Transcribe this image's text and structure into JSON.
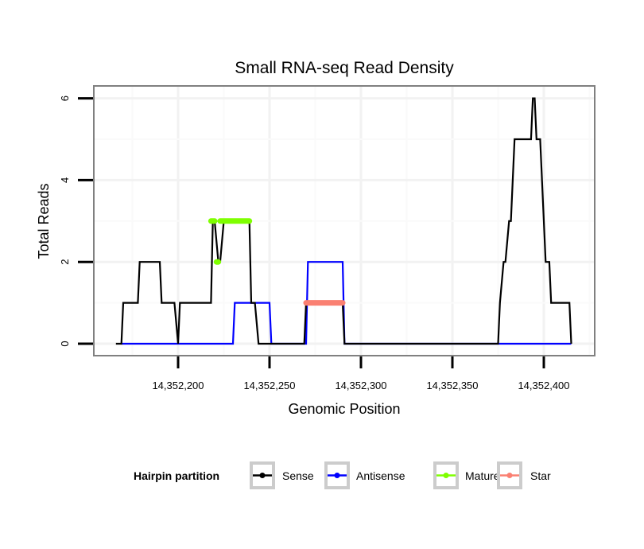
{
  "chart_data": {
    "type": "line",
    "title": "Small RNA-seq Read Density",
    "xlabel": "Genomic Position",
    "ylabel": "Total Reads",
    "xlim": [
      14352160,
      14352418
    ],
    "ylim": [
      -0.25,
      6.2
    ],
    "grid": true,
    "x_ticks": [
      {
        "value": 14352200,
        "label": "14,352,200"
      },
      {
        "value": 14352250,
        "label": "14,352,250"
      },
      {
        "value": 14352300,
        "label": "14,352,300"
      },
      {
        "value": 14352350,
        "label": "14,352,350"
      },
      {
        "value": 14352400,
        "label": "14,352,400"
      }
    ],
    "y_ticks": [
      {
        "value": 0,
        "label": "0"
      },
      {
        "value": 2,
        "label": "2"
      },
      {
        "value": 4,
        "label": "4"
      },
      {
        "value": 6,
        "label": "6"
      }
    ],
    "legend": {
      "title": "Hairpin partition",
      "position": "bottom",
      "entries": [
        {
          "name": "Sense",
          "color": "#000000"
        },
        {
          "name": "Antisense",
          "color": "#0000ff"
        },
        {
          "name": "Mature",
          "color": "#7fff00"
        },
        {
          "name": "Star",
          "color": "#fa8072"
        }
      ]
    },
    "series": [
      {
        "name": "Sense",
        "color": "#000000",
        "x": [
          14352166,
          14352169,
          14352170,
          14352178,
          14352179,
          14352190,
          14352191,
          14352198,
          14352200,
          14352201,
          14352218,
          14352219,
          14352220,
          14352222,
          14352223,
          14352225,
          14352239,
          14352240,
          14352242,
          14352244,
          14352269,
          14352270,
          14352290,
          14352291,
          14352375,
          14352376,
          14352378,
          14352379,
          14352381,
          14352382,
          14352384,
          14352385,
          14352393,
          14352394,
          14352395,
          14352396,
          14352398,
          14352401,
          14352403,
          14352404,
          14352406,
          14352414,
          14352415
        ],
        "y": [
          0,
          0,
          1,
          1,
          2,
          2,
          1,
          1,
          0,
          1,
          1,
          3,
          3,
          2,
          2,
          3,
          3,
          1,
          1,
          0,
          0,
          1,
          1,
          0,
          0,
          1,
          2,
          2,
          3,
          3,
          5,
          5,
          5,
          6,
          6,
          5,
          5,
          2,
          2,
          1,
          1,
          1,
          0
        ]
      },
      {
        "name": "Antisense",
        "color": "#0000ff",
        "x": [
          14352169,
          14352230,
          14352231,
          14352250,
          14352251,
          14352270,
          14352271,
          14352290,
          14352291,
          14352415
        ],
        "y": [
          0,
          0,
          1,
          1,
          0,
          0,
          2,
          2,
          0,
          0
        ]
      },
      {
        "name": "Mature",
        "color": "#7fff00",
        "segments": [
          {
            "x": [
              14352218,
              14352220
            ],
            "y": 3
          },
          {
            "x": [
              14352221,
              14352222
            ],
            "y": 2
          },
          {
            "x": [
              14352223,
              14352239
            ],
            "y": 3
          }
        ]
      },
      {
        "name": "Star",
        "color": "#fa8072",
        "segments": [
          {
            "x": [
              14352270,
              14352290
            ],
            "y": 1
          }
        ]
      }
    ]
  }
}
